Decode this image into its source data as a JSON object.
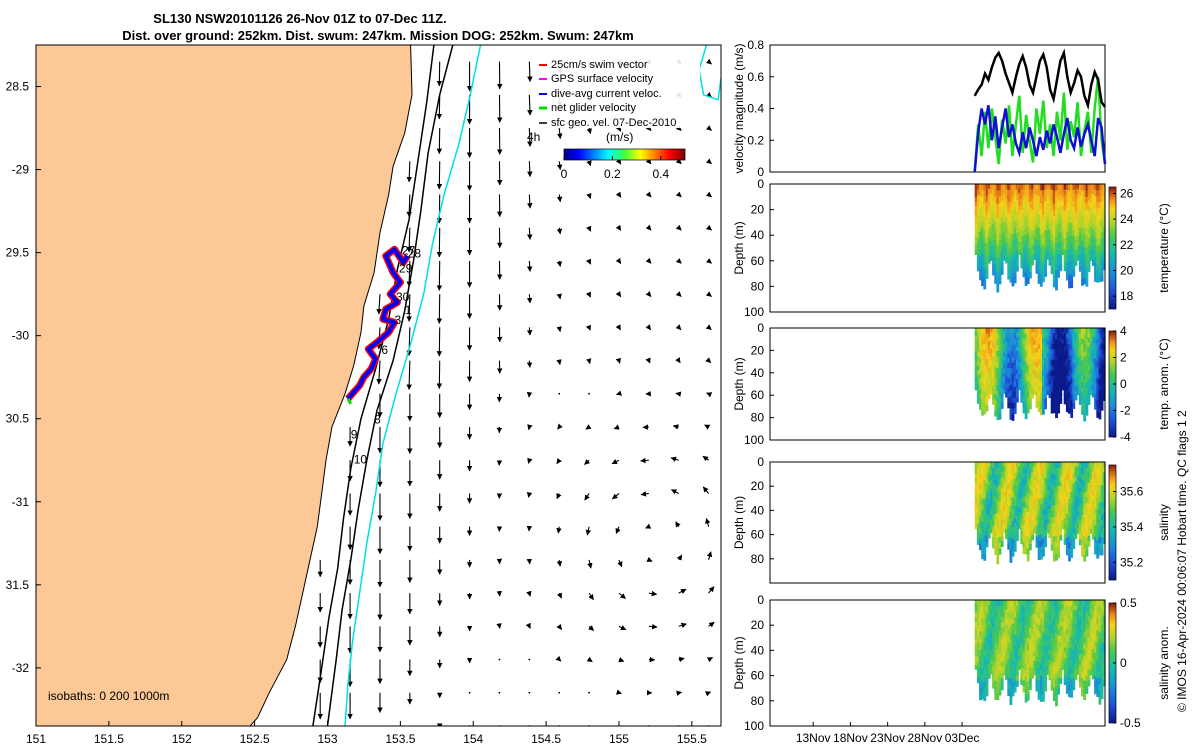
{
  "colors": {
    "land": "#fbc896",
    "isobath200": "#000000",
    "isobath1000": "#000000",
    "isobath0": "#00e0e0",
    "swim": "#ff0000",
    "gps": "#ff00ff",
    "diveavg": "#0000ff",
    "net": "#00dd00",
    "geovel": "#000000",
    "vel_black": "#000000",
    "vel_blue": "#1010d0",
    "vel_green": "#22dd22"
  },
  "chart_data": [
    {
      "type": "scatter",
      "panel": "map",
      "title": "SL130 NSW20101126 26-Nov 01Z to 07-Dec 11Z.",
      "subtitle": "Dist. over ground: 252km. Dist. swum: 247km. Mission DOG: 252km. Swum: 247km",
      "xlim": [
        151,
        155.7
      ],
      "ylim": [
        -32.35,
        -28.25
      ],
      "xticks": [
        151,
        151.5,
        152,
        152.5,
        153,
        153.5,
        154,
        154.5,
        155,
        155.5
      ],
      "xtick_labels": [
        "151",
        "151.5",
        "152",
        "152.5",
        "153",
        "153.5",
        "154",
        "154.5",
        "155",
        "155.5"
      ],
      "yticks": [
        -28.5,
        -29,
        -29.5,
        -30,
        -30.5,
        -31,
        -31.5,
        -32
      ],
      "ytick_labels": [
        "28.5",
        "-29",
        "29.5",
        "-30",
        "30.5",
        "-31",
        "31.5",
        "-32"
      ],
      "legend": {
        "position": "top-right",
        "entries": [
          "25cm/s swim vector",
          "GPS surface velocity",
          "dive-avg current veloc.",
          "net glider velocity",
          "sfc geo. vel. 07-Dec-2010"
        ]
      },
      "colorbar": {
        "label": "(m/s)",
        "ticks": [
          0,
          0.2,
          0.4
        ],
        "tick_labels": [
          "0",
          "0.2",
          "0.4"
        ],
        "range": [
          0,
          0.5
        ],
        "note": "4h"
      },
      "isobath_label": "isobaths: 0   200  1000m",
      "day_labels": [
        {
          "text": "27",
          "lon": 153.51,
          "lat": -29.51
        },
        {
          "text": "28",
          "lon": 153.55,
          "lat": -29.53
        },
        {
          "text": "29",
          "lon": 153.49,
          "lat": -29.62
        },
        {
          "text": "30",
          "lon": 153.47,
          "lat": -29.79
        },
        {
          "text": "1",
          "lon": 153.53,
          "lat": -29.87
        },
        {
          "text": "3",
          "lon": 153.46,
          "lat": -29.93
        },
        {
          "text": "6",
          "lon": 153.37,
          "lat": -30.11
        },
        {
          "text": "8",
          "lon": 153.32,
          "lat": -30.53
        },
        {
          "text": "9",
          "lon": 153.16,
          "lat": -30.62
        },
        {
          "text": "10",
          "lon": 153.18,
          "lat": -30.77
        }
      ],
      "coast": [
        [
          153.57,
          -28.25
        ],
        [
          153.58,
          -28.55
        ],
        [
          153.53,
          -28.78
        ],
        [
          153.45,
          -28.98
        ],
        [
          153.42,
          -29.15
        ],
        [
          153.36,
          -29.38
        ],
        [
          153.32,
          -29.62
        ],
        [
          153.25,
          -29.82
        ],
        [
          153.23,
          -29.98
        ],
        [
          153.18,
          -30.18
        ],
        [
          153.12,
          -30.35
        ],
        [
          153.03,
          -30.55
        ],
        [
          152.99,
          -30.75
        ],
        [
          152.96,
          -30.95
        ],
        [
          152.93,
          -31.15
        ],
        [
          152.88,
          -31.35
        ],
        [
          152.83,
          -31.55
        ],
        [
          152.78,
          -31.75
        ],
        [
          152.72,
          -31.95
        ],
        [
          152.6,
          -32.15
        ],
        [
          152.52,
          -32.3
        ],
        [
          152.47,
          -32.35
        ]
      ],
      "isobath200": [
        [
          153.73,
          -28.25
        ],
        [
          153.68,
          -28.6
        ],
        [
          153.62,
          -28.95
        ],
        [
          153.56,
          -29.3
        ],
        [
          153.48,
          -29.6
        ],
        [
          153.42,
          -29.9
        ],
        [
          153.33,
          -30.2
        ],
        [
          153.23,
          -30.5
        ],
        [
          153.16,
          -30.8
        ],
        [
          153.11,
          -31.1
        ],
        [
          153.07,
          -31.4
        ],
        [
          153.01,
          -31.7
        ],
        [
          152.96,
          -32.0
        ],
        [
          152.9,
          -32.35
        ]
      ],
      "isobath1000": [
        [
          153.86,
          -28.25
        ],
        [
          153.77,
          -28.55
        ],
        [
          153.69,
          -28.9
        ],
        [
          153.64,
          -29.25
        ],
        [
          153.59,
          -29.55
        ],
        [
          153.53,
          -29.85
        ],
        [
          153.45,
          -30.15
        ],
        [
          153.34,
          -30.45
        ],
        [
          153.27,
          -30.75
        ],
        [
          153.21,
          -31.05
        ],
        [
          153.16,
          -31.35
        ],
        [
          153.1,
          -31.65
        ],
        [
          153.06,
          -31.95
        ],
        [
          153.0,
          -32.35
        ]
      ],
      "isobath0": [
        [
          154.05,
          -28.25
        ],
        [
          153.98,
          -28.55
        ],
        [
          153.9,
          -28.85
        ],
        [
          153.8,
          -29.15
        ],
        [
          153.72,
          -29.45
        ],
        [
          153.66,
          -29.75
        ],
        [
          153.57,
          -30.05
        ],
        [
          153.47,
          -30.35
        ],
        [
          153.38,
          -30.65
        ],
        [
          153.33,
          -30.95
        ],
        [
          153.27,
          -31.25
        ],
        [
          153.22,
          -31.55
        ],
        [
          153.17,
          -31.85
        ],
        [
          153.14,
          -32.1
        ],
        [
          153.12,
          -32.35
        ]
      ],
      "eddy_contour": [
        [
          155.6,
          -28.25
        ],
        [
          155.55,
          -28.4
        ],
        [
          155.58,
          -28.55
        ],
        [
          155.68,
          -28.58
        ],
        [
          155.7,
          -28.45
        ]
      ],
      "glider_track": [
        [
          153.55,
          -29.52
        ],
        [
          153.52,
          -29.56
        ],
        [
          153.46,
          -29.48
        ],
        [
          153.4,
          -29.52
        ],
        [
          153.45,
          -29.62
        ],
        [
          153.5,
          -29.68
        ],
        [
          153.43,
          -29.75
        ],
        [
          153.48,
          -29.8
        ],
        [
          153.4,
          -29.84
        ],
        [
          153.38,
          -29.9
        ],
        [
          153.46,
          -29.92
        ],
        [
          153.42,
          -29.98
        ],
        [
          153.34,
          -30.04
        ],
        [
          153.28,
          -30.08
        ],
        [
          153.33,
          -30.14
        ],
        [
          153.3,
          -30.2
        ],
        [
          153.25,
          -30.25
        ],
        [
          153.22,
          -30.3
        ],
        [
          153.17,
          -30.35
        ],
        [
          153.14,
          -30.38
        ]
      ],
      "track_end": [
        153.16,
        -30.41
      ],
      "geostrophic_grid": {
        "lon_start": 152.95,
        "lon_step": 0.205,
        "lat_start": -28.35,
        "lat_step": -0.2
      }
    },
    {
      "type": "line",
      "panel": "velocity",
      "ylabel": "velocity magnitude (m/s)",
      "ylim": [
        0,
        0.8
      ],
      "yticks": [
        0,
        0.2,
        0.4,
        0.6,
        0.8
      ],
      "ytick_labels": [
        "0",
        "0.2",
        "0.4",
        "0.6",
        "0.8"
      ],
      "xlim_day": [
        0,
        45
      ],
      "series": [
        {
          "name": "",
          "color": "black",
          "values": [
            0.48,
            0.52,
            0.55,
            0.62,
            0.58,
            0.66,
            0.72,
            0.75,
            0.7,
            0.62,
            0.56,
            0.5,
            0.6,
            0.68,
            0.73,
            0.66,
            0.55,
            0.5,
            0.6,
            0.7,
            0.74,
            0.66,
            0.52,
            0.46,
            0.58,
            0.7,
            0.75,
            0.6,
            0.5,
            0.56,
            0.64,
            0.6,
            0.48,
            0.42,
            0.55,
            0.63,
            0.58,
            0.44,
            0.41
          ]
        },
        {
          "name": "",
          "color": "green",
          "values": [
            0.0,
            0.3,
            0.1,
            0.38,
            0.15,
            0.4,
            0.22,
            0.05,
            0.33,
            0.18,
            0.42,
            0.1,
            0.3,
            0.48,
            0.12,
            0.36,
            0.2,
            0.06,
            0.4,
            0.24,
            0.45,
            0.15,
            0.3,
            0.1,
            0.38,
            0.2,
            0.5,
            0.14,
            0.32,
            0.22,
            0.44,
            0.1,
            0.26,
            0.38,
            0.12,
            0.4,
            0.6,
            0.2,
            0.05
          ]
        },
        {
          "name": "",
          "color": "blue",
          "values": [
            0.0,
            0.25,
            0.4,
            0.3,
            0.42,
            0.2,
            0.35,
            0.15,
            0.28,
            0.4,
            0.22,
            0.3,
            0.18,
            0.12,
            0.25,
            0.15,
            0.28,
            0.2,
            0.1,
            0.22,
            0.14,
            0.26,
            0.18,
            0.3,
            0.22,
            0.12,
            0.24,
            0.34,
            0.2,
            0.15,
            0.28,
            0.16,
            0.24,
            0.3,
            0.2,
            0.1,
            0.34,
            0.28,
            0.05
          ]
        }
      ]
    },
    {
      "type": "heatmap",
      "panel": "temperature",
      "ylabel": "Depth (m)",
      "yticks": [
        0,
        20,
        40,
        60,
        80,
        100
      ],
      "ytick_labels": [
        "0",
        "20",
        "40",
        "60",
        "80",
        "100"
      ],
      "colorbar_label": "temperature (°C)",
      "colorbar_ticks": [
        "18",
        "20",
        "22",
        "24",
        "26"
      ],
      "colorbar_range": [
        17,
        26.5
      ],
      "cmap": "parula"
    },
    {
      "type": "heatmap",
      "panel": "temp_anom",
      "ylabel": "Depth (m)",
      "yticks": [
        0,
        20,
        40,
        60,
        80,
        100
      ],
      "ytick_labels": [
        "0",
        "20",
        "40",
        "60",
        "80",
        "100"
      ],
      "colorbar_label": "temp. anom. (°C)",
      "colorbar_ticks": [
        "-4",
        "-2",
        "0",
        "2",
        "4"
      ],
      "colorbar_range": [
        -4,
        4
      ],
      "cmap": "parula"
    },
    {
      "type": "heatmap",
      "panel": "salinity",
      "ylabel": "Depth (m)",
      "yticks": [
        0,
        20,
        40,
        60,
        80
      ],
      "ytick_labels": [
        "0",
        "20",
        "40",
        "60",
        "80"
      ],
      "colorbar_label": "salinity",
      "colorbar_ticks": [
        "35.2",
        "35.4",
        "35.6"
      ],
      "colorbar_range": [
        35.1,
        35.75
      ],
      "cmap": "parula"
    },
    {
      "type": "heatmap",
      "panel": "sal_anom",
      "ylabel": "Depth (m)",
      "yticks": [
        0,
        20,
        40,
        60,
        80,
        100
      ],
      "ytick_labels": [
        "0",
        "20",
        "40",
        "60",
        "80",
        "100"
      ],
      "colorbar_label": "salinity anom.",
      "colorbar_ticks": [
        "-0.5",
        "0",
        "0.5"
      ],
      "colorbar_range": [
        -0.5,
        0.5
      ],
      "cmap": "parula",
      "xticks_day": [
        5,
        10,
        15,
        20,
        25
      ],
      "xtick_labels": [
        "13Nov",
        "18Nov",
        "23Nov",
        "28Nov",
        "03Dec"
      ]
    }
  ],
  "credit": "© IMOS 16-Apr-2024 00:06:07 Hobart time. QC flags 1  2"
}
